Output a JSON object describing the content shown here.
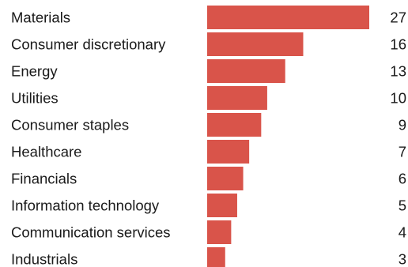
{
  "chart_data": {
    "type": "bar",
    "orientation": "horizontal",
    "categories": [
      "Materials",
      "Consumer discretionary",
      "Energy",
      "Utilities",
      "Consumer staples",
      "Healthcare",
      "Financials",
      "Information technology",
      "Communication services",
      "Industrials"
    ],
    "values": [
      27,
      16,
      13,
      10,
      9,
      7,
      6,
      5,
      4,
      3
    ],
    "title": "",
    "xlabel": "",
    "ylabel": "",
    "xlim": [
      0,
      27
    ],
    "grid": false,
    "legend": "none",
    "bar_color": "#d9544a",
    "text_color": "#1a1a1a"
  }
}
